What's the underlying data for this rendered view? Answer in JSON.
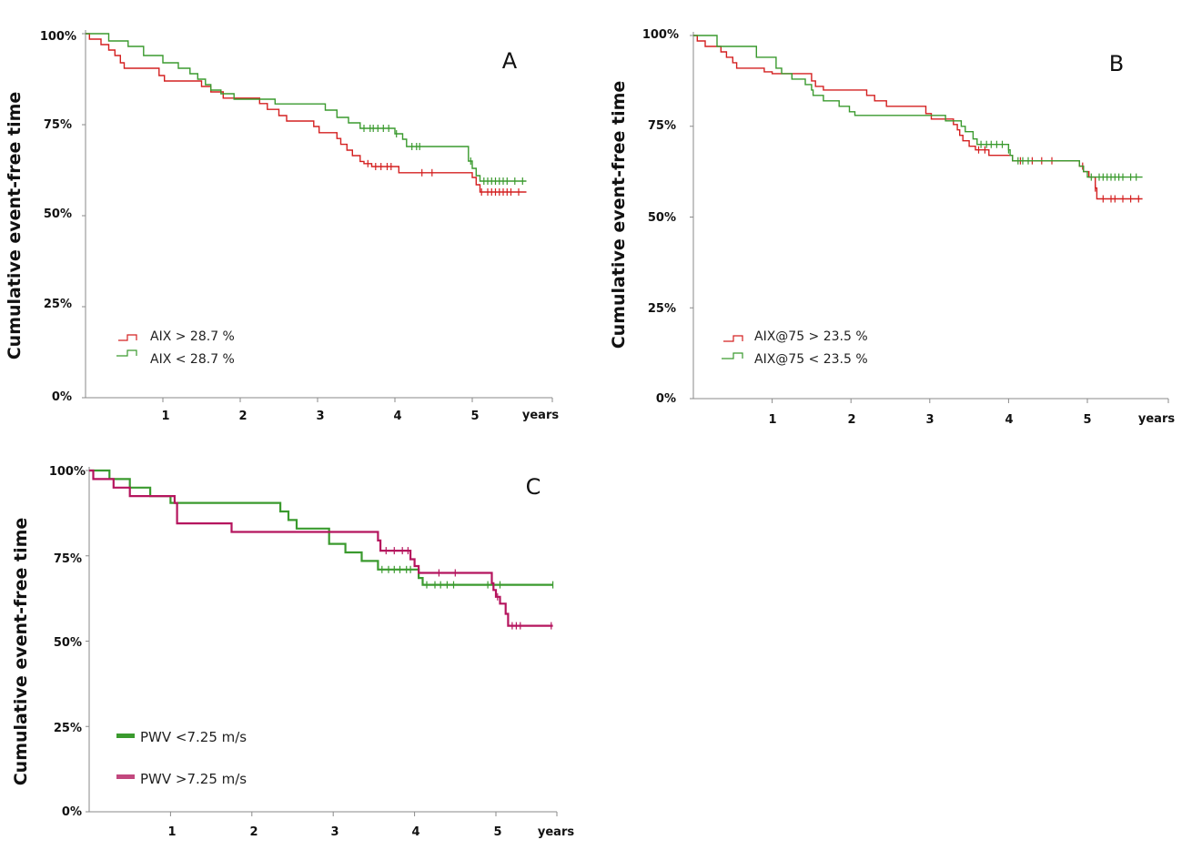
{
  "chart_data": [
    {
      "type": "line",
      "panel_label": "A",
      "ylabel": "Cumulative event-free  time",
      "xlabel": "years",
      "x_ticks": [
        "1",
        "2",
        "3",
        "4",
        "5"
      ],
      "y_ticks": [
        "0%",
        "25%",
        "50%",
        "75%",
        "100%"
      ],
      "xlim": [
        0,
        6
      ],
      "ylim": [
        0,
        100
      ],
      "legend_position": "bottom-left",
      "series": [
        {
          "name": "AIX > 28.7 %",
          "color": "#d42020",
          "steps": [
            [
              0,
              100
            ],
            [
              0.05,
              98.5
            ],
            [
              0.2,
              97
            ],
            [
              0.3,
              95.5
            ],
            [
              0.38,
              94
            ],
            [
              0.45,
              92
            ],
            [
              0.5,
              90.5
            ],
            [
              0.95,
              88.5
            ],
            [
              1.02,
              87
            ],
            [
              1.5,
              85.5
            ],
            [
              1.62,
              84
            ],
            [
              1.78,
              82.3
            ],
            [
              2.25,
              80.8
            ],
            [
              2.35,
              79.2
            ],
            [
              2.5,
              77.5
            ],
            [
              2.6,
              76
            ],
            [
              2.95,
              74.5
            ],
            [
              3.02,
              72.8
            ],
            [
              3.25,
              71.2
            ],
            [
              3.3,
              69.6
            ],
            [
              3.38,
              68
            ],
            [
              3.45,
              66.5
            ],
            [
              3.55,
              64.9
            ],
            [
              3.6,
              64.3
            ],
            [
              3.7,
              63.5
            ],
            [
              4.05,
              61.8
            ],
            [
              4.45,
              61.8
            ],
            [
              5.0,
              60.5
            ],
            [
              5.05,
              58.5
            ],
            [
              5.1,
              56.5
            ],
            [
              5.7,
              56.5
            ]
          ],
          "censor_x": [
            3.65,
            3.75,
            3.82,
            3.9,
            3.95,
            4.35,
            4.48,
            5.12,
            5.2,
            5.25,
            5.3,
            5.35,
            5.4,
            5.45,
            5.5,
            5.6
          ]
        },
        {
          "name": "AIX < 28.7 %",
          "color": "#3a9a2e",
          "steps": [
            [
              0,
              100
            ],
            [
              0.3,
              98
            ],
            [
              0.55,
              96.5
            ],
            [
              0.75,
              94
            ],
            [
              1.0,
              92
            ],
            [
              1.2,
              90.5
            ],
            [
              1.35,
              89
            ],
            [
              1.45,
              87.5
            ],
            [
              1.55,
              86
            ],
            [
              1.62,
              84.5
            ],
            [
              1.75,
              83.5
            ],
            [
              1.92,
              82
            ],
            [
              2.45,
              80.7
            ],
            [
              3.1,
              79
            ],
            [
              3.25,
              77
            ],
            [
              3.4,
              75.5
            ],
            [
              3.55,
              74
            ],
            [
              4.0,
              72.5
            ],
            [
              4.1,
              71
            ],
            [
              4.15,
              69
            ],
            [
              4.95,
              65
            ],
            [
              5.0,
              63
            ],
            [
              5.05,
              61
            ],
            [
              5.1,
              59.5
            ],
            [
              5.7,
              59.5
            ]
          ],
          "censor_x": [
            3.6,
            3.68,
            3.72,
            3.78,
            3.85,
            3.92,
            4.02,
            4.22,
            4.28,
            4.32,
            4.98,
            5.15,
            5.2,
            5.25,
            5.3,
            5.35,
            5.4,
            5.45,
            5.55,
            5.65
          ]
        }
      ]
    },
    {
      "type": "line",
      "panel_label": "B",
      "ylabel": "Cumulative event-free  time",
      "xlabel": "years",
      "x_ticks": [
        "1",
        "2",
        "3",
        "4",
        "5"
      ],
      "y_ticks": [
        "0%",
        "25%",
        "50%",
        "75%",
        "100%"
      ],
      "xlim": [
        0,
        6
      ],
      "ylim": [
        0,
        100
      ],
      "legend_position": "bottom-left",
      "series": [
        {
          "name": "AIX@75 > 23.5 %",
          "color": "#d42020",
          "steps": [
            [
              0,
              100
            ],
            [
              0.05,
              98.5
            ],
            [
              0.15,
              97
            ],
            [
              0.35,
              95.5
            ],
            [
              0.42,
              94
            ],
            [
              0.5,
              92.5
            ],
            [
              0.55,
              91
            ],
            [
              0.9,
              90
            ],
            [
              1.0,
              89.5
            ],
            [
              1.5,
              87.5
            ],
            [
              1.55,
              86
            ],
            [
              1.65,
              85
            ],
            [
              2.2,
              83.5
            ],
            [
              2.3,
              82
            ],
            [
              2.45,
              80.5
            ],
            [
              2.95,
              78.5
            ],
            [
              3.02,
              77
            ],
            [
              3.3,
              75.5
            ],
            [
              3.35,
              74
            ],
            [
              3.38,
              72.5
            ],
            [
              3.42,
              71
            ],
            [
              3.5,
              69.5
            ],
            [
              3.58,
              68.5
            ],
            [
              3.75,
              67
            ],
            [
              4.05,
              65.5
            ],
            [
              4.9,
              64
            ],
            [
              4.95,
              62.5
            ],
            [
              5.02,
              61
            ],
            [
              5.1,
              58
            ],
            [
              5.12,
              55
            ],
            [
              5.7,
              55
            ]
          ],
          "censor_x": [
            3.62,
            3.7,
            4.15,
            4.3,
            4.42,
            4.55,
            4.94,
            5.1,
            5.2,
            5.3,
            5.35,
            5.45,
            5.55,
            5.65
          ]
        },
        {
          "name": "AIX@75 < 23.5 %",
          "color": "#3a9a2e",
          "steps": [
            [
              0,
              100
            ],
            [
              0.3,
              97
            ],
            [
              0.8,
              94
            ],
            [
              1.05,
              91
            ],
            [
              1.12,
              89.5
            ],
            [
              1.25,
              88
            ],
            [
              1.42,
              86.5
            ],
            [
              1.5,
              85
            ],
            [
              1.52,
              83.5
            ],
            [
              1.65,
              82
            ],
            [
              1.85,
              80.5
            ],
            [
              1.98,
              79
            ],
            [
              2.05,
              78
            ],
            [
              3.2,
              76.5
            ],
            [
              3.4,
              75
            ],
            [
              3.45,
              73.5
            ],
            [
              3.55,
              71.5
            ],
            [
              3.6,
              70
            ],
            [
              4.0,
              68.5
            ],
            [
              4.02,
              67
            ],
            [
              4.05,
              65.5
            ],
            [
              4.9,
              64
            ],
            [
              4.95,
              62.5
            ],
            [
              5.0,
              61
            ],
            [
              5.7,
              61
            ]
          ],
          "censor_x": [
            3.65,
            3.72,
            3.78,
            3.85,
            3.92,
            4.0,
            4.12,
            4.18,
            4.25,
            5.05,
            5.15,
            5.2,
            5.25,
            5.3,
            5.35,
            5.4,
            5.45,
            5.55,
            5.62
          ]
        }
      ]
    },
    {
      "type": "line",
      "panel_label": "C",
      "ylabel": "Cumulative event-free  time",
      "xlabel": "years",
      "x_ticks": [
        "1",
        "2",
        "3",
        "4",
        "5"
      ],
      "y_ticks": [
        "0%",
        "25%",
        "50%",
        "75%",
        "100%"
      ],
      "xlim": [
        0,
        6
      ],
      "ylim": [
        0,
        100
      ],
      "legend_position": "bottom-left",
      "series": [
        {
          "name": "PWV <7.25 m/s",
          "color": "#3a9a2e",
          "steps": [
            [
              0,
              100
            ],
            [
              0.25,
              97.5
            ],
            [
              0.5,
              95
            ],
            [
              0.75,
              92.5
            ],
            [
              1.0,
              90.5
            ],
            [
              2.35,
              88
            ],
            [
              2.45,
              85.5
            ],
            [
              2.55,
              83
            ],
            [
              2.95,
              78.5
            ],
            [
              3.15,
              76
            ],
            [
              3.35,
              73.5
            ],
            [
              3.55,
              71
            ],
            [
              4.05,
              68.5
            ],
            [
              4.1,
              66.5
            ],
            [
              5.7,
              66.5
            ]
          ],
          "censor_x": [
            3.6,
            3.68,
            3.75,
            3.82,
            3.9,
            3.95,
            4.15,
            4.25,
            4.32,
            4.4,
            4.48,
            4.9,
            5.05,
            5.7
          ]
        },
        {
          "name": "PWV >7.25 m/s",
          "color": "#b5155e",
          "steps": [
            [
              0,
              100
            ],
            [
              0.05,
              97.5
            ],
            [
              0.3,
              95
            ],
            [
              0.5,
              92.5
            ],
            [
              1.05,
              90.5
            ],
            [
              1.08,
              84.5
            ],
            [
              1.75,
              82
            ],
            [
              3.55,
              79.5
            ],
            [
              3.58,
              76.5
            ],
            [
              3.95,
              74
            ],
            [
              4.0,
              72
            ],
            [
              4.05,
              70
            ],
            [
              4.95,
              67
            ],
            [
              4.97,
              65
            ],
            [
              5.0,
              63
            ],
            [
              5.05,
              61
            ],
            [
              5.12,
              58
            ],
            [
              5.15,
              54.5
            ],
            [
              5.7,
              54.5
            ]
          ],
          "censor_x": [
            3.65,
            3.75,
            3.85,
            3.92,
            4.3,
            4.5,
            5.02,
            5.2,
            5.25,
            5.3,
            5.68
          ]
        }
      ]
    }
  ]
}
